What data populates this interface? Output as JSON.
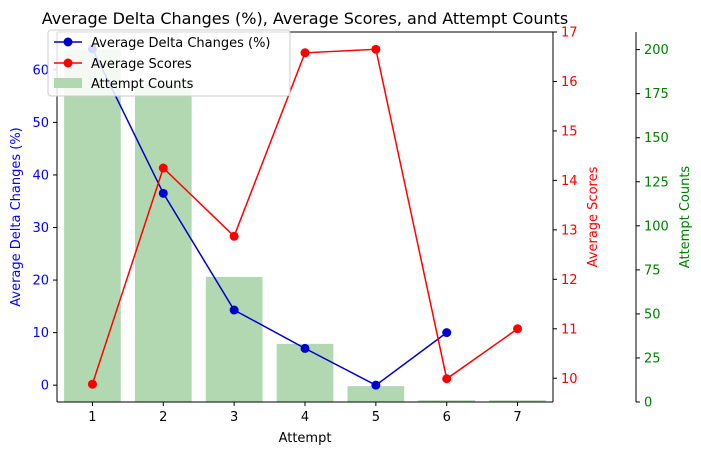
{
  "chart_data": {
    "type": "bar",
    "title": "Average Delta Changes (%), Average Scores, and Attempt Counts",
    "xlabel": "Attempt",
    "categories": [
      "1",
      "2",
      "3",
      "4",
      "5",
      "6",
      "7"
    ],
    "xlim": [
      0.5,
      7.5
    ],
    "axes": {
      "left": {
        "label": "Average Delta Changes (%)",
        "color": "#0000ff",
        "ylim": [
          -3.2,
          67.2
        ],
        "ticks": [
          0,
          10,
          20,
          30,
          40,
          50,
          60
        ]
      },
      "right": {
        "label": "Average Scores",
        "color": "#ff0000",
        "ylim": [
          9.52,
          17.0
        ],
        "ticks": [
          10,
          11,
          12,
          13,
          14,
          15,
          16,
          17
        ]
      },
      "far_right": {
        "label": "Attempt Counts",
        "color": "#008000",
        "ylim": [
          0,
          210
        ],
        "ticks": [
          0,
          25,
          50,
          75,
          100,
          125,
          150,
          175,
          200
        ]
      }
    },
    "legend_position": "upper-left",
    "series": [
      {
        "name": "Average Delta Changes (%)",
        "type": "line",
        "axis": "left",
        "color": "#0000cc",
        "x": [
          1,
          2,
          3,
          4,
          5,
          6
        ],
        "values": [
          64,
          36.5,
          14.3,
          7.0,
          0.0,
          10.0
        ]
      },
      {
        "name": "Average Scores",
        "type": "line",
        "axis": "right",
        "color": "#ff0000",
        "x": [
          1,
          2,
          3,
          4,
          5,
          6,
          7
        ],
        "values": [
          9.88,
          14.25,
          12.87,
          16.58,
          16.65,
          9.99,
          11.0
        ]
      },
      {
        "name": "Attempt Counts",
        "type": "bar",
        "axis": "far_right",
        "color": "#b2d8b2",
        "x": [
          1,
          2,
          3,
          4,
          5,
          6,
          7
        ],
        "values": [
          200,
          180,
          71,
          33,
          9,
          1,
          1
        ]
      }
    ]
  }
}
